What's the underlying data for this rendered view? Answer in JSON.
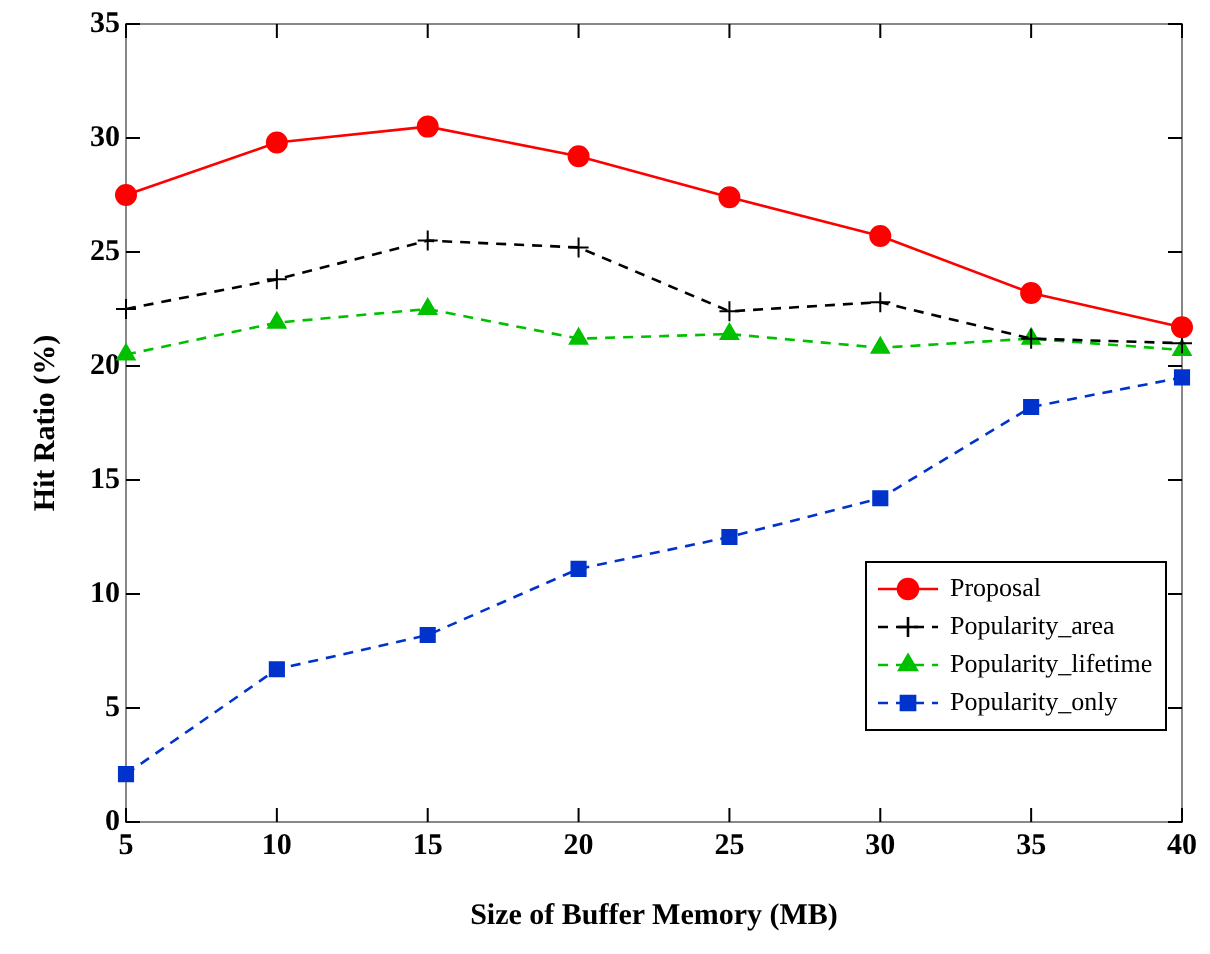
{
  "chart_data": {
    "type": "line",
    "xlabel": "Size of Buffer Memory (MB)",
    "ylabel": "Hit Ratio (%)",
    "x": [
      5,
      10,
      15,
      20,
      25,
      30,
      35,
      40
    ],
    "series": [
      {
        "name": "Proposal",
        "color": "#ff0000",
        "marker": "circle",
        "line_style": "solid",
        "values": [
          27.5,
          29.8,
          30.5,
          29.2,
          27.4,
          25.7,
          23.2,
          21.7
        ]
      },
      {
        "name": "Popularity_area",
        "color": "#000000",
        "marker": "cross",
        "line_style": "dashed",
        "values": [
          22.5,
          23.8,
          25.5,
          25.2,
          22.4,
          22.8,
          21.2,
          21.0
        ]
      },
      {
        "name": "Popularity_lifetime",
        "color": "#00c000",
        "marker": "triangle",
        "line_style": "dashed",
        "values": [
          20.5,
          21.9,
          22.5,
          21.2,
          21.4,
          20.8,
          21.2,
          20.7
        ]
      },
      {
        "name": "Popularity_only",
        "color": "#0033cc",
        "marker": "square",
        "line_style": "dashed",
        "values": [
          2.1,
          6.7,
          8.2,
          11.1,
          12.5,
          14.2,
          18.2,
          19.5
        ]
      }
    ],
    "xlim": [
      5,
      40
    ],
    "xticks": [
      5,
      10,
      15,
      20,
      25,
      30,
      35,
      40
    ],
    "ylim": [
      0,
      35
    ],
    "yticks": [
      0,
      5,
      10,
      15,
      20,
      25,
      30,
      35
    ],
    "grid": false,
    "legend": "bottom right"
  }
}
